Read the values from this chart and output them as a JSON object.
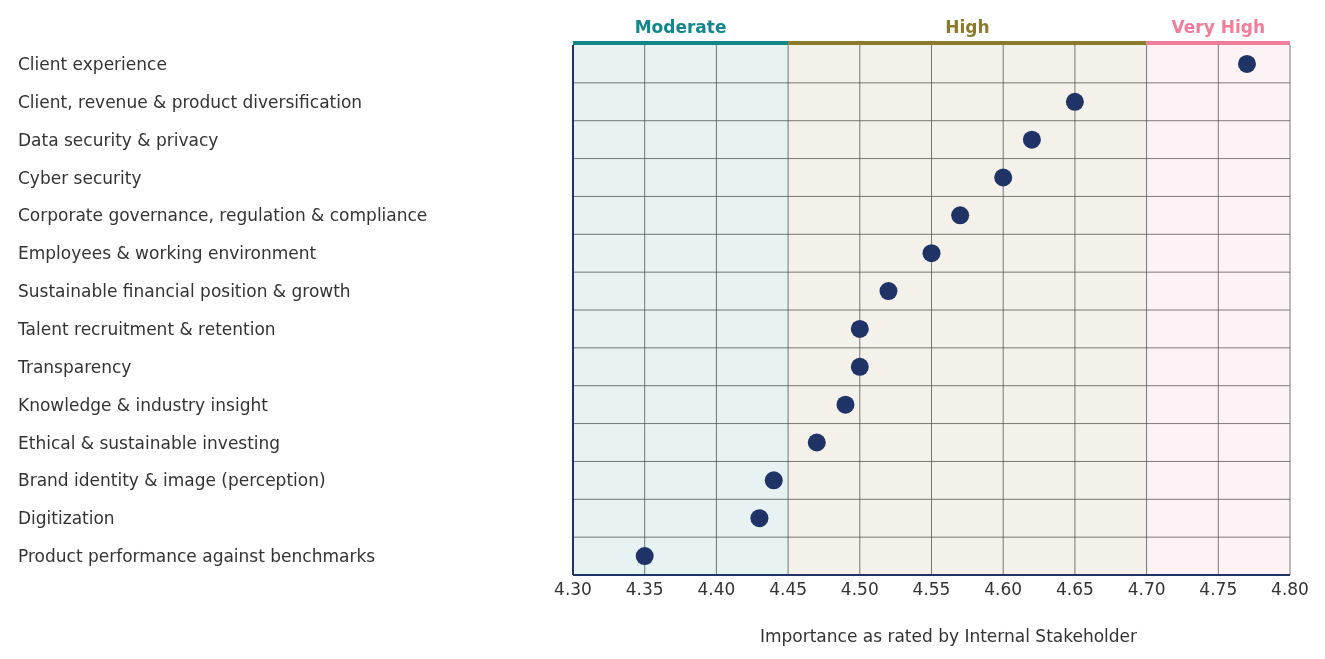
{
  "chart_data": {
    "type": "scatter",
    "xlabel": "Importance as rated by Internal Stakeholder",
    "categories": [
      "Client experience",
      "Client, revenue & product diversification",
      "Data security & privacy",
      "Cyber security",
      "Corporate governance, regulation & compliance",
      "Employees & working environment",
      "Sustainable financial position & growth",
      "Talent recruitment & retention",
      "Transparency",
      "Knowledge & industry insight",
      "Ethical & sustainable investing",
      "Brand identity & image (perception)",
      "Digitization",
      "Product performance against benchmarks"
    ],
    "orientation": "horizontal",
    "series": [
      {
        "color": "#1f3366",
        "values": [
          4.77,
          4.65,
          4.62,
          4.6,
          4.57,
          4.55,
          4.52,
          4.5,
          4.5,
          4.49,
          4.47,
          4.44,
          4.43,
          4.35
        ]
      }
    ],
    "xlim": [
      4.3,
      4.8
    ],
    "xticks": [
      {
        "value": 4.3,
        "label": "4.30"
      },
      {
        "value": 4.35,
        "label": "4.35"
      },
      {
        "value": 4.4,
        "label": "4.40"
      },
      {
        "value": 4.45,
        "label": "4.45"
      },
      {
        "value": 4.5,
        "label": "4.50"
      },
      {
        "value": 4.55,
        "label": "4.55"
      },
      {
        "value": 4.6,
        "label": "4.60"
      },
      {
        "value": 4.65,
        "label": "4.65"
      },
      {
        "value": 4.7,
        "label": "4.70"
      },
      {
        "value": 4.75,
        "label": "4.75"
      },
      {
        "value": 4.8,
        "label": "4.80"
      }
    ],
    "bands": [
      {
        "axis": "x",
        "from": 4.3,
        "to": 4.45,
        "label": "Moderate",
        "color": "#12868a"
      },
      {
        "axis": "x",
        "from": 4.45,
        "to": 4.7,
        "label": "High",
        "color": "#8b7a2c"
      },
      {
        "axis": "x",
        "from": 4.7,
        "to": 4.8,
        "label": "Very High",
        "color": "#f07d9a"
      }
    ],
    "grid": true,
    "marker": "circle",
    "legend": false
  }
}
